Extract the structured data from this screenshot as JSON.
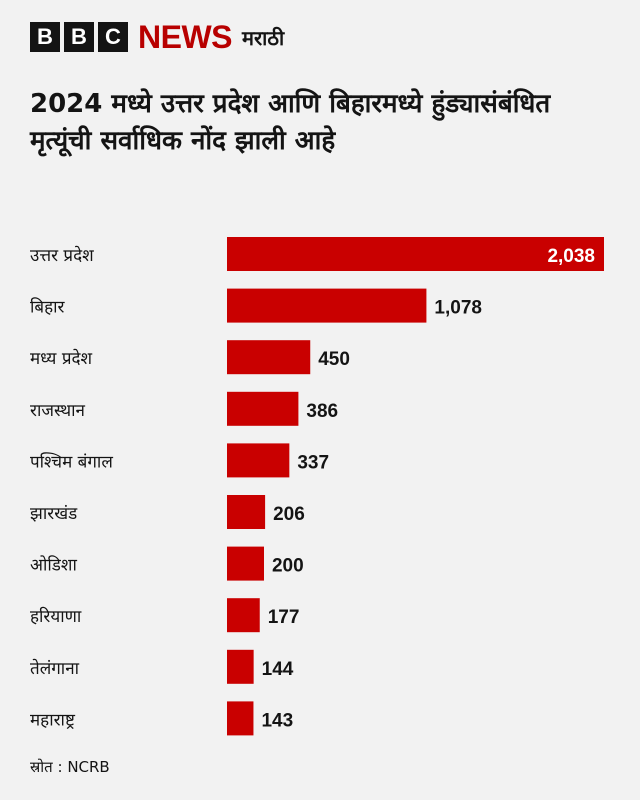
{
  "header": {
    "bbc_letters": [
      "B",
      "B",
      "C"
    ],
    "news": "NEWS",
    "language": "मराठी"
  },
  "colors": {
    "bar": "#c90000",
    "brand": "#b80000",
    "text": "#141414",
    "background": "#f2f2f2"
  },
  "chart_data": {
    "type": "bar",
    "orientation": "horizontal",
    "title": "2024 मध्ये उत्तर प्रदेश आणि बिहारमध्ये हुंड्यासंबंधित मृत्यूंची सर्वाधिक नोंद झाली आहे",
    "categories": [
      "उत्तर प्रदेश",
      "बिहार",
      "मध्य प्रदेश",
      "राजस्थान",
      "पश्चिम बंगाल",
      "झारखंड",
      "ओडिशा",
      "हरियाणा",
      "तेलंगाना",
      "महाराष्ट्र"
    ],
    "values": [
      2038,
      1078,
      450,
      386,
      337,
      206,
      200,
      177,
      144,
      143
    ],
    "value_labels": [
      "2,038",
      "1,078",
      "450",
      "386",
      "337",
      "206",
      "200",
      "177",
      "144",
      "143"
    ],
    "xlim": [
      0,
      2038
    ],
    "grid": false,
    "legend": "none"
  },
  "source": "स्रोत : NCRB"
}
